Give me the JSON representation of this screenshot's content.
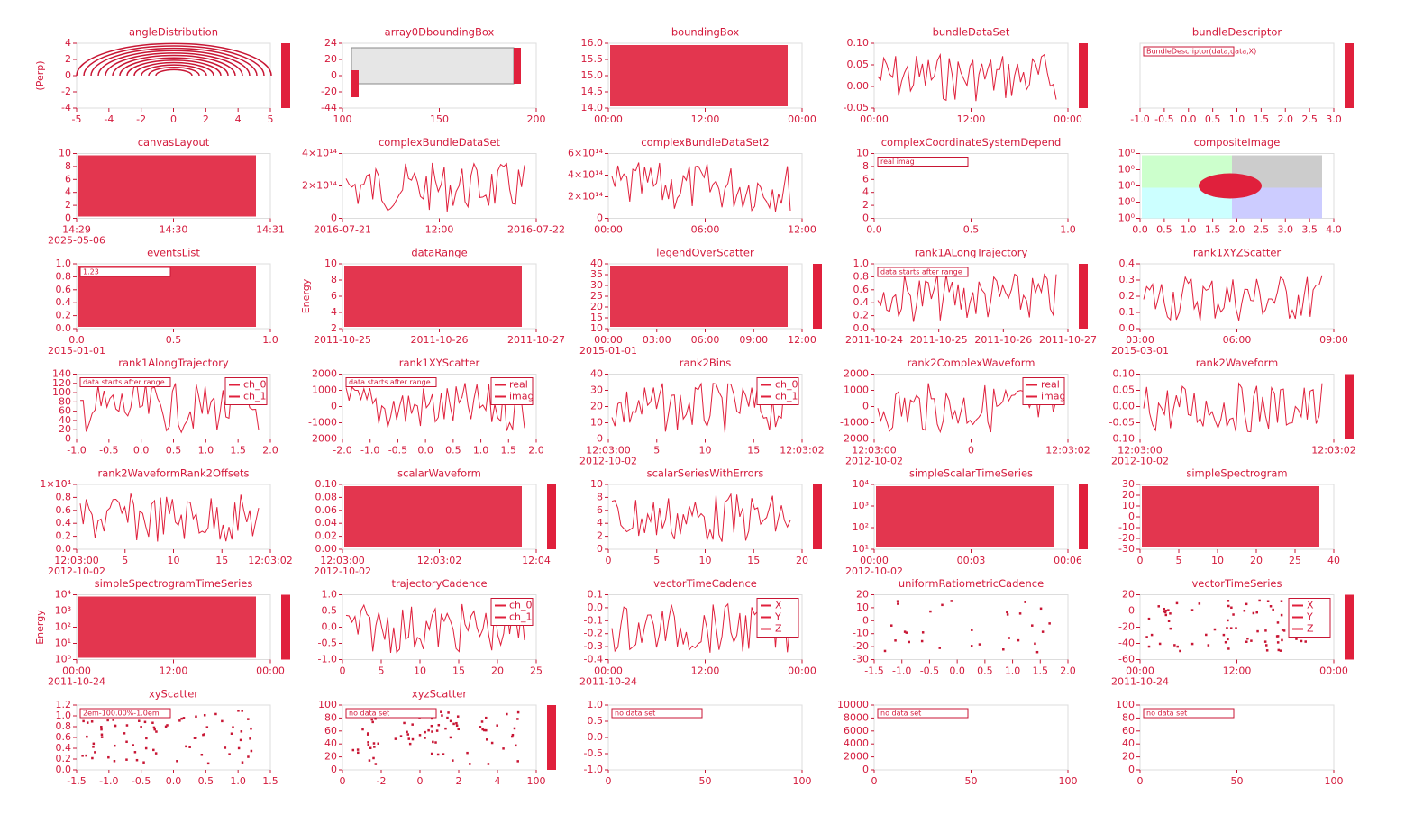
{
  "panels": [
    {
      "title": "angleDistribution",
      "x_ticks": [
        "-5",
        "-4",
        "-2",
        "0",
        "2",
        "4",
        "5"
      ],
      "y_ticks": [
        "4",
        "2",
        "0",
        "-2",
        "-4"
      ],
      "y_label": "(Perp)"
    },
    {
      "title": "array0DboundingBox",
      "x_ticks": [
        "100",
        "150",
        "200"
      ],
      "y_ticks": [
        "24",
        "20",
        "0",
        "-20",
        "-44"
      ]
    },
    {
      "title": "boundingBox",
      "x_ticks": [
        "00:00",
        "12:00",
        "00:00"
      ],
      "y_ticks": [
        "16.0",
        "15.5",
        "15.0",
        "14.5",
        "14.0"
      ]
    },
    {
      "title": "bundleDataSet",
      "x_ticks": [
        "00:00",
        "12:00",
        "00:00"
      ],
      "y_ticks": [
        "0.10",
        "0.05",
        "0.00",
        "-0.05"
      ]
    },
    {
      "title": "bundleDescriptor",
      "x_ticks": [
        "-1.0",
        "-0.5",
        "0.0",
        "0.5",
        "1.0",
        "1.5",
        "2.0",
        "2.5",
        "3.0"
      ],
      "y_ticks": [],
      "annotations": [
        "BundleDescriptor(data,data,X)"
      ]
    },
    {
      "title": "canvasLayout",
      "x_ticks": [
        "14:29",
        "14:30",
        "14:31"
      ],
      "y_ticks": [
        "10",
        "8",
        "6",
        "4",
        "2",
        "0"
      ],
      "x_note": "2025-05-06"
    },
    {
      "title": "complexBundleDataSet",
      "x_ticks": [
        "2016-07-21",
        "12:00",
        "2016-07-22"
      ],
      "y_ticks": [
        "4×10¹⁴",
        "2×10¹⁴",
        "0"
      ]
    },
    {
      "title": "complexBundleDataSet2",
      "x_ticks": [
        "00:00",
        "06:00",
        "12:00"
      ],
      "y_ticks": [
        "6×10¹⁴",
        "4×10¹⁴",
        "2×10¹⁴",
        "0"
      ]
    },
    {
      "title": "complexCoordinateSystemDepend",
      "x_ticks": [
        "0.0",
        "0.5",
        "1.0"
      ],
      "y_ticks": [
        "10",
        "8",
        "6",
        "4",
        "2",
        "0"
      ],
      "annotations": [
        "real imag"
      ]
    },
    {
      "title": "compositeImage",
      "x_ticks": [
        "0.0",
        "0.5",
        "1.0",
        "1.5",
        "2.0",
        "2.5",
        "3.0",
        "3.5",
        "4.0"
      ],
      "y_ticks": [
        "10⁰",
        "10⁰",
        "10⁰",
        "10⁰",
        "10⁰"
      ]
    },
    {
      "title": "eventsList",
      "x_ticks": [
        "0.0",
        "0.5",
        "1.0"
      ],
      "y_ticks": [
        "1.0",
        "0.8",
        "0.6",
        "0.4",
        "0.2",
        "0.0"
      ],
      "annotations": [
        "1.23"
      ],
      "x_note": "2015-01-01"
    },
    {
      "title": "dataRange",
      "x_ticks": [
        "2011-10-25",
        "2011-10-26",
        "2011-10-27"
      ],
      "y_ticks": [
        "10",
        "8",
        "6",
        "4",
        "2"
      ],
      "y_label": "Energy"
    },
    {
      "title": "legendOverScatter",
      "x_ticks": [
        "00:00",
        "03:00",
        "06:00",
        "09:00",
        "12:00"
      ],
      "y_ticks": [
        "40",
        "35",
        "30",
        "25",
        "20",
        "15",
        "10"
      ],
      "x_note": "2015-01-01"
    },
    {
      "title": "rank1ALongTrajectory",
      "x_ticks": [
        "2011-10-24",
        "2011-10-25",
        "2011-10-26",
        "2011-10-27"
      ],
      "y_ticks": [
        "1.0",
        "0.8",
        "0.6",
        "0.4",
        "0.2",
        "0.0"
      ],
      "annotations": [
        "data starts after range"
      ]
    },
    {
      "title": "rank1XYZScatter",
      "x_ticks": [
        "03:00",
        "06:00",
        "09:00"
      ],
      "y_ticks": [
        "0.4",
        "0.3",
        "0.2",
        "0.1",
        "0.0"
      ],
      "x_note": "2015-03-01"
    },
    {
      "title": "rank1AlongTrajectory",
      "x_ticks": [
        "-1.0",
        "-0.5",
        "0.0",
        "0.5",
        "1.0",
        "1.5",
        "2.0"
      ],
      "y_ticks": [
        "140",
        "120",
        "100",
        "80",
        "60",
        "40",
        "20",
        "0"
      ],
      "annotations": [
        "data starts after range"
      ],
      "legend": [
        "ch_0",
        "ch_1"
      ]
    },
    {
      "title": "rank1XYScatter",
      "x_ticks": [
        "-2.0",
        "-1.0",
        "-0.5",
        "0.0",
        "0.5",
        "1.0",
        "1.5",
        "2.0"
      ],
      "y_ticks": [
        "2000",
        "1000",
        "0",
        "-1000",
        "-2000"
      ],
      "annotations": [
        "data starts after range"
      ],
      "legend": [
        "real",
        "imag"
      ]
    },
    {
      "title": "rank2Bins",
      "x_ticks": [
        "12:03:00",
        "5",
        "10",
        "15",
        "12:03:02"
      ],
      "y_ticks": [
        "40",
        "30",
        "20",
        "10",
        "0"
      ],
      "legend": [
        "ch_0",
        "ch_1"
      ],
      "x_note": "2012-10-02"
    },
    {
      "title": "rank2ComplexWaveform",
      "x_ticks": [
        "12:03:00",
        "0",
        "12:03:02"
      ],
      "y_ticks": [
        "2000",
        "1000",
        "0",
        "-1000",
        "-2000"
      ],
      "legend": [
        "real",
        "imag"
      ],
      "x_note": "2012-10-02"
    },
    {
      "title": "rank2Waveform",
      "x_ticks": [
        "12:03:00",
        "12:03:02"
      ],
      "y_ticks": [
        "0.10",
        "0.05",
        "0.00",
        "-0.05",
        "-0.10"
      ],
      "x_note": "2012-10-02"
    },
    {
      "title": "rank2WaveformRank2Offsets",
      "x_ticks": [
        "12:03:00",
        "5",
        "10",
        "15",
        "12:03:02"
      ],
      "y_ticks": [
        "1×10⁴",
        "0.8",
        "0.6",
        "0.4",
        "0.2",
        "0.0"
      ],
      "x_note": "2012-10-02"
    },
    {
      "title": "scalarWaveform",
      "x_ticks": [
        "12:03:00",
        "12:03:02",
        "12:04"
      ],
      "y_ticks": [
        "0.10",
        "0.08",
        "0.06",
        "0.04",
        "0.02",
        "0.00"
      ],
      "x_note": "2012-10-02"
    },
    {
      "title": "scalarSeriesWithErrors",
      "x_ticks": [
        "0",
        "5",
        "10",
        "15",
        "20"
      ],
      "y_ticks": [
        "10",
        "8",
        "6",
        "4",
        "2",
        "0"
      ]
    },
    {
      "title": "simpleScalarTimeSeries",
      "x_ticks": [
        "00:00",
        "00:03",
        "00:06"
      ],
      "y_ticks": [
        "10⁴",
        "10³",
        "10²",
        "10¹"
      ],
      "x_note": "2012-10-02"
    },
    {
      "title": "simpleSpectrogram",
      "x_ticks": [
        "0",
        "5",
        "10",
        "20",
        "25",
        "40"
      ],
      "y_ticks": [
        "30",
        "20",
        "10",
        "0",
        "-10",
        "-20",
        "-30"
      ]
    },
    {
      "title": "simpleSpectrogramTimeSeries",
      "x_ticks": [
        "00:00",
        "12:00",
        "00:00"
      ],
      "y_ticks": [
        "10⁴",
        "10³",
        "10²",
        "10¹",
        "10⁰"
      ],
      "y_label": "Energy",
      "x_note": "2011-10-24"
    },
    {
      "title": "trajectoryCadence",
      "x_ticks": [
        "0",
        "5",
        "10",
        "15",
        "20",
        "25"
      ],
      "y_ticks": [
        "1.0",
        "0.5",
        "0.0",
        "-0.5",
        "-1.0"
      ],
      "legend": [
        "ch_0",
        "ch_1"
      ]
    },
    {
      "title": "vectorTimeCadence",
      "x_ticks": [
        "00:00",
        "12:00",
        "00:00"
      ],
      "y_ticks": [
        "0.1",
        "0.0",
        "-0.1",
        "-0.2",
        "-0.3",
        "-0.4"
      ],
      "legend": [
        "X",
        "Y",
        "Z"
      ],
      "x_note": "2011-10-24"
    },
    {
      "title": "uniformRatiometricCadence",
      "x_ticks": [
        "-1.5",
        "-1.0",
        "-0.5",
        "0.0",
        "0.5",
        "1.0",
        "1.5",
        "2.0"
      ],
      "y_ticks": [
        "20",
        "10",
        "0",
        "-10",
        "-20",
        "-30"
      ]
    },
    {
      "title": "vectorTimeSeries",
      "x_ticks": [
        "00:00",
        "12:00",
        "00:00"
      ],
      "y_ticks": [
        "20",
        "0",
        "-20",
        "-40",
        "-60"
      ],
      "legend": [
        "X",
        "Y",
        "Z"
      ],
      "x_note": "2011-10-24"
    },
    {
      "title": "xyScatter",
      "x_ticks": [
        "-1.5",
        "-1.0",
        "-0.5",
        "0.0",
        "0.5",
        "1.0",
        "1.5"
      ],
      "y_ticks": [
        "1.2",
        "1.0",
        "0.8",
        "0.6",
        "0.4",
        "0.2",
        "0.0"
      ],
      "annotations": [
        "2em-100.00%-1.0em"
      ]
    },
    {
      "title": "xyzScatter",
      "x_ticks": [
        "0",
        "-2",
        "0",
        "2",
        "4",
        "100"
      ],
      "y_ticks": [
        "100",
        "80",
        "60",
        "40",
        "20",
        "0"
      ],
      "annotations": [
        "no data set"
      ]
    },
    {
      "title": "",
      "x_ticks": [
        "0",
        "50",
        "100"
      ],
      "y_ticks": [
        "1.0",
        "0.5",
        "0.0",
        "-0.5",
        "-1.0"
      ],
      "annotations": [
        "no data set"
      ]
    },
    {
      "title": "",
      "x_ticks": [
        "0",
        "50",
        "100"
      ],
      "y_ticks": [
        "10000",
        "8000",
        "6000",
        "4000",
        "2000",
        "0"
      ],
      "annotations": [
        "no data set"
      ]
    },
    {
      "title": "",
      "x_ticks": [
        "0",
        "50",
        "100"
      ],
      "y_ticks": [
        "100",
        "80",
        "60",
        "40",
        "20",
        "0"
      ],
      "annotations": [
        "no data set"
      ]
    }
  ]
}
